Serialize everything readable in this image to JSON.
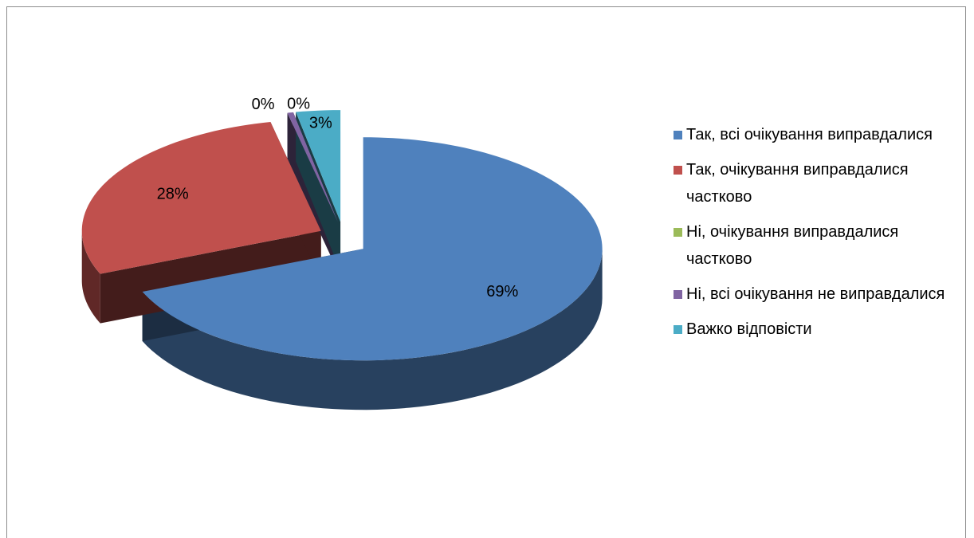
{
  "chart_data": {
    "type": "pie",
    "categories": [
      "Так, всі очікування виправдалися",
      "Так, очікування виправдалися частково",
      "Ні, очікування виправдалися частково",
      "Ні, всі очікування не виправдалися",
      "Важко відповісти"
    ],
    "values": [
      69,
      28,
      0,
      0.4,
      3
    ],
    "value_labels": [
      "69%",
      "28%",
      "0%",
      "0%",
      "3%"
    ],
    "colors": [
      "#4f81bd",
      "#c0504d",
      "#9bbb59",
      "#8064a2",
      "#4bacc6"
    ],
    "legend": "right"
  }
}
